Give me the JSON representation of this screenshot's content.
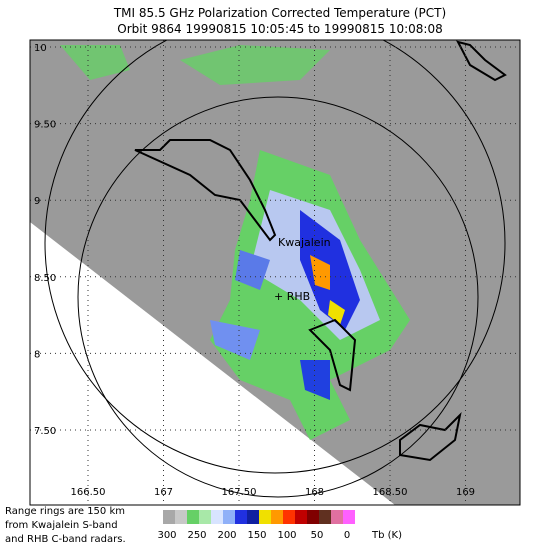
{
  "header": {
    "title": "TMI 85.5 GHz Polarization Corrected Temperature (PCT)",
    "subtitle": "Orbit 9864 19990815 10:05:45 to 19990815 10:08:08"
  },
  "axes": {
    "lat_labels": [
      "10",
      "9.50",
      "9",
      "8.50",
      "8",
      "7.50"
    ],
    "lon_labels": [
      "166.50",
      "167",
      "167.50",
      "168",
      "168.50",
      "169"
    ]
  },
  "sites": [
    "Kwajalein",
    "+ RHB"
  ],
  "legend": {
    "labels": [
      "300",
      "250",
      "200",
      "150",
      "100",
      "50",
      "0"
    ],
    "unit": "Tb (K)"
  },
  "note": [
    "Range rings are 150 km",
    "from Kwajalein S-band",
    "and RHB C-band radars."
  ]
}
